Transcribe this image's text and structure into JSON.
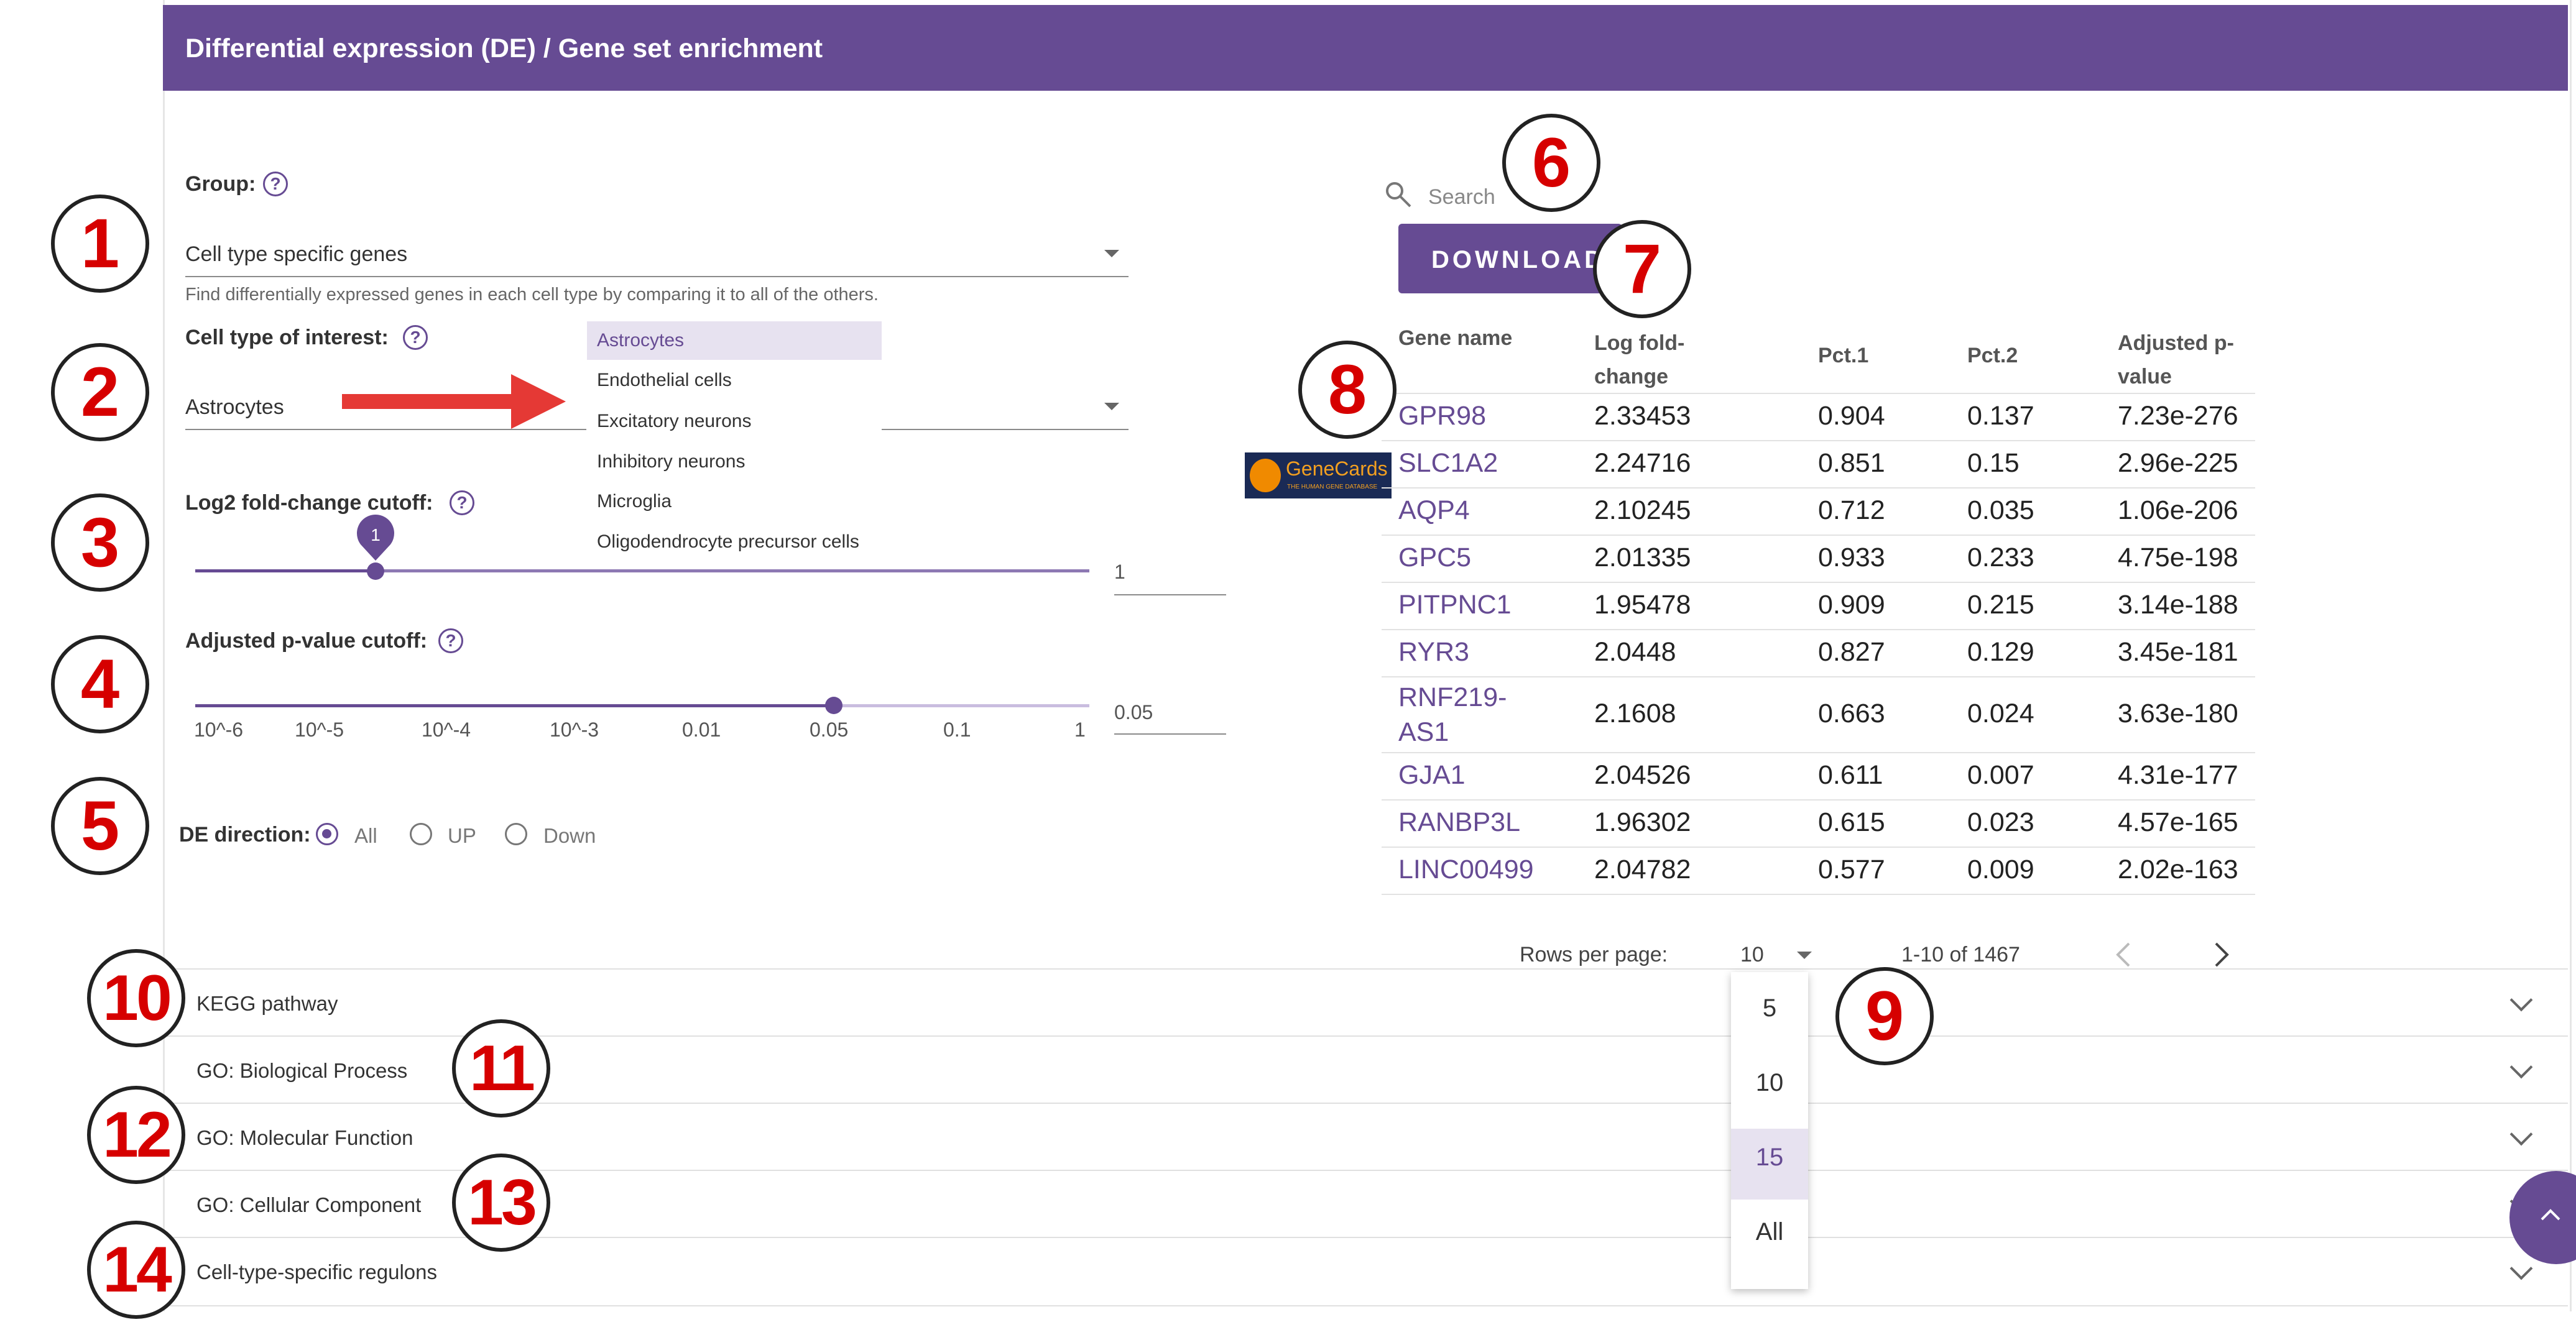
{
  "header": {
    "title": "Differential expression (DE) / Gene set enrichment"
  },
  "group": {
    "label": "Group:",
    "value": "Cell type specific genes",
    "helper": "Find differentially expressed genes in each cell type by comparing it to all of the others."
  },
  "cell_type": {
    "label": "Cell type of interest:",
    "value": "Astrocytes",
    "options": [
      "Astrocytes",
      "Endothelial cells",
      "Excitatory neurons",
      "Inhibitory neurons",
      "Microglia",
      "Oligodendrocyte precursor cells"
    ]
  },
  "log2fc": {
    "label": "Log2 fold-change cutoff:",
    "thumb_value": "1",
    "input_value": "1",
    "level_fraction": 0.2
  },
  "pvalue": {
    "label": "Adjusted p-value cutoff:",
    "ticks": [
      "10^-6",
      "10^-5",
      "10^-4",
      "10^-3",
      "0.01",
      "0.05",
      "0.1",
      "1"
    ],
    "input_value": "0.05",
    "selected": "0.05"
  },
  "direction": {
    "label": "DE direction:",
    "options": [
      "All",
      "UP",
      "Down"
    ],
    "selected": "All"
  },
  "search": {
    "placeholder": "Search"
  },
  "download_label": "DOWNLOAD",
  "genecards": {
    "name": "GeneCards",
    "tagline": "THE HUMAN GENE DATABASE"
  },
  "table": {
    "headers": [
      "Gene name",
      "Log fold-change",
      "Pct.1",
      "Pct.2",
      "Adjusted p-value"
    ],
    "rows": [
      [
        "GPR98",
        "2.33453",
        "0.904",
        "0.137",
        "7.23e-276"
      ],
      [
        "SLC1A2",
        "2.24716",
        "0.851",
        "0.15",
        "2.96e-225"
      ],
      [
        "AQP4",
        "2.10245",
        "0.712",
        "0.035",
        "1.06e-206"
      ],
      [
        "GPC5",
        "2.01335",
        "0.933",
        "0.233",
        "4.75e-198"
      ],
      [
        "PITPNC1",
        "1.95478",
        "0.909",
        "0.215",
        "3.14e-188"
      ],
      [
        "RYR3",
        "2.0448",
        "0.827",
        "0.129",
        "3.45e-181"
      ],
      [
        "RNF219-AS1",
        "2.1608",
        "0.663",
        "0.024",
        "3.63e-180"
      ],
      [
        "GJA1",
        "2.04526",
        "0.611",
        "0.007",
        "4.31e-177"
      ],
      [
        "RANBP3L",
        "1.96302",
        "0.615",
        "0.023",
        "4.57e-165"
      ],
      [
        "LINC00499",
        "2.04782",
        "0.577",
        "0.009",
        "2.02e-163"
      ]
    ]
  },
  "pagination": {
    "rows_per_page_label": "Rows per page:",
    "rows_per_page_value": "10",
    "range_text": "1-10 of 1467",
    "options": [
      "5",
      "10",
      "15",
      "All"
    ],
    "highlighted_option": "15"
  },
  "accordions": [
    "KEGG pathway",
    "GO: Biological Process",
    "GO: Molecular Function",
    "GO: Cellular Component",
    "Cell-type-specific regulons"
  ],
  "callouts": [
    "1",
    "2",
    "3",
    "4",
    "5",
    "6",
    "7",
    "8",
    "9",
    "10",
    "11",
    "12",
    "13",
    "14"
  ],
  "colors": {
    "brand": "#664b93",
    "callout": "#d60000",
    "arrow": "#e53935",
    "highlight": "#e7e2f0"
  }
}
